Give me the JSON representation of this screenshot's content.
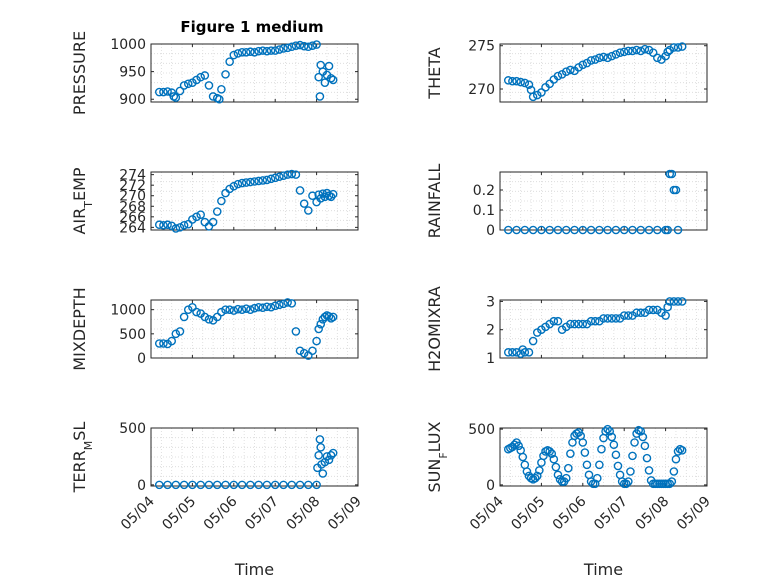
{
  "chart_data": [
    {
      "type": "scatter",
      "title": "Figure 1 medium",
      "ylabel": "PRESSURE",
      "xlabel": "",
      "xlim": [
        0,
        5
      ],
      "ylim": [
        895,
        1000
      ],
      "yticks": [
        900,
        950,
        1000
      ],
      "y_tick_labels": [
        "900",
        "950",
        "1000"
      ],
      "x": [
        0.2,
        0.3,
        0.4,
        0.5,
        0.55,
        0.6,
        0.7,
        0.8,
        0.9,
        1.0,
        1.1,
        1.2,
        1.3,
        1.4,
        1.5,
        1.6,
        1.65,
        1.7,
        1.8,
        1.9,
        2.0,
        2.1,
        2.2,
        2.3,
        2.4,
        2.5,
        2.6,
        2.7,
        2.8,
        2.9,
        3.0,
        3.1,
        3.2,
        3.3,
        3.4,
        3.5,
        3.6,
        3.7,
        3.8,
        3.9,
        4.0,
        4.05,
        4.08,
        4.1,
        4.15,
        4.2,
        4.25,
        4.3,
        4.35,
        4.4
      ],
      "y": [
        913,
        913,
        914,
        912,
        905,
        903,
        915,
        925,
        928,
        930,
        935,
        940,
        943,
        925,
        905,
        902,
        900,
        918,
        945,
        968,
        980,
        983,
        985,
        985,
        986,
        985,
        987,
        988,
        987,
        988,
        988,
        990,
        992,
        993,
        995,
        997,
        998,
        996,
        995,
        997,
        999,
        940,
        905,
        962,
        950,
        930,
        944,
        960,
        938,
        935
      ]
    },
    {
      "type": "scatter",
      "ylabel": "THETA",
      "xlabel": "",
      "xlim": [
        0,
        5
      ],
      "ylim": [
        268.5,
        275.2
      ],
      "yticks": [
        270,
        275
      ],
      "y_tick_labels": [
        "270",
        "275"
      ],
      "x": [
        0.2,
        0.3,
        0.4,
        0.5,
        0.6,
        0.7,
        0.75,
        0.8,
        0.9,
        1.0,
        1.1,
        1.2,
        1.3,
        1.4,
        1.5,
        1.6,
        1.7,
        1.8,
        1.9,
        2.0,
        2.1,
        2.2,
        2.3,
        2.4,
        2.5,
        2.6,
        2.7,
        2.8,
        2.9,
        3.0,
        3.1,
        3.2,
        3.3,
        3.4,
        3.5,
        3.6,
        3.7,
        3.8,
        3.9,
        4.0,
        4.05,
        4.1,
        4.2,
        4.3,
        4.4
      ],
      "y": [
        271,
        270.9,
        270.9,
        270.8,
        270.7,
        270.5,
        269.9,
        269.1,
        269.3,
        269.6,
        270.2,
        270.6,
        271.1,
        271.5,
        271.7,
        272.0,
        272.2,
        272.1,
        272.5,
        272.8,
        273.0,
        273.3,
        273.4,
        273.6,
        273.7,
        273.6,
        273.8,
        274.0,
        274.2,
        274.3,
        274.4,
        274.4,
        274.5,
        274.4,
        274.6,
        274.5,
        274.2,
        273.6,
        273.4,
        273.8,
        274.3,
        274.5,
        274.8,
        274.8,
        274.9
      ]
    },
    {
      "type": "scatter",
      "ylabel": "AIR_TEMP",
      "xlabel": "",
      "xlim": [
        0,
        5
      ],
      "ylim": [
        263.5,
        274.5
      ],
      "yticks": [
        264,
        266,
        268,
        270,
        272,
        274
      ],
      "y_tick_labels": [
        "264",
        "266",
        "268",
        "270",
        "272",
        "274"
      ],
      "x": [
        0.2,
        0.3,
        0.4,
        0.5,
        0.6,
        0.7,
        0.8,
        0.9,
        1.0,
        1.1,
        1.2,
        1.3,
        1.4,
        1.5,
        1.6,
        1.7,
        1.8,
        1.9,
        2.0,
        2.1,
        2.2,
        2.3,
        2.4,
        2.5,
        2.6,
        2.7,
        2.8,
        2.9,
        3.0,
        3.1,
        3.2,
        3.3,
        3.4,
        3.5,
        3.6,
        3.7,
        3.8,
        3.9,
        4.0,
        4.05,
        4.1,
        4.15,
        4.2,
        4.25,
        4.3,
        4.35,
        4.4
      ],
      "y": [
        264.5,
        264.4,
        264.5,
        264.3,
        263.8,
        264.0,
        264.4,
        264.6,
        265.5,
        266.0,
        266.4,
        265.0,
        264.2,
        265.0,
        267.0,
        269.0,
        270.5,
        271.3,
        271.8,
        272.2,
        272.4,
        272.5,
        272.6,
        272.7,
        272.8,
        272.9,
        273.0,
        273.2,
        273.4,
        273.6,
        273.8,
        274.0,
        274.1,
        274.0,
        271.0,
        268.5,
        267.2,
        270.0,
        268.8,
        270.2,
        269.5,
        270.4,
        269.8,
        270.5,
        270.0,
        269.8,
        270.3
      ]
    },
    {
      "type": "scatter",
      "ylabel": "RAINFALL",
      "xlabel": "",
      "xlim": [
        0,
        5
      ],
      "ylim": [
        0,
        0.29
      ],
      "yticks": [
        0,
        0.1,
        0.2
      ],
      "y_tick_labels": [
        "0",
        "0.1",
        "0.2"
      ],
      "x": [
        0.2,
        0.4,
        0.6,
        0.8,
        1.0,
        1.2,
        1.4,
        1.6,
        1.8,
        2.0,
        2.2,
        2.4,
        2.6,
        2.8,
        3.0,
        3.2,
        3.4,
        3.6,
        3.8,
        4.0,
        4.05,
        4.1,
        4.15,
        4.2,
        4.25,
        4.3
      ],
      "y": [
        0,
        0,
        0,
        0,
        0,
        0,
        0,
        0,
        0,
        0,
        0,
        0,
        0,
        0,
        0,
        0,
        0,
        0,
        0,
        0,
        0,
        0.28,
        0.28,
        0.2,
        0.2,
        0
      ]
    },
    {
      "type": "scatter",
      "ylabel": "MIXDEPTH",
      "xlabel": "",
      "xlim": [
        0,
        5
      ],
      "ylim": [
        0,
        1200
      ],
      "yticks": [
        0,
        500,
        1000
      ],
      "y_tick_labels": [
        "0",
        "500",
        "1000"
      ],
      "x": [
        0.2,
        0.3,
        0.4,
        0.5,
        0.6,
        0.7,
        0.8,
        0.9,
        1.0,
        1.1,
        1.2,
        1.3,
        1.4,
        1.5,
        1.6,
        1.7,
        1.8,
        1.9,
        2.0,
        2.1,
        2.2,
        2.3,
        2.4,
        2.5,
        2.6,
        2.7,
        2.8,
        2.9,
        3.0,
        3.1,
        3.2,
        3.3,
        3.4,
        3.5,
        3.6,
        3.7,
        3.8,
        3.9,
        4.0,
        4.05,
        4.1,
        4.15,
        4.2,
        4.25,
        4.3,
        4.35,
        4.4
      ],
      "y": [
        300,
        300,
        290,
        350,
        500,
        550,
        850,
        1000,
        1050,
        950,
        920,
        850,
        800,
        780,
        850,
        950,
        1000,
        1000,
        980,
        1010,
        1000,
        1020,
        1000,
        1030,
        1050,
        1040,
        1060,
        1050,
        1080,
        1100,
        1120,
        1150,
        1130,
        550,
        150,
        100,
        50,
        150,
        350,
        600,
        700,
        800,
        850,
        880,
        860,
        820,
        850
      ]
    },
    {
      "type": "scatter",
      "ylabel": "H2OMIXRA",
      "xlabel": "",
      "xlim": [
        0,
        5
      ],
      "ylim": [
        1,
        3.05
      ],
      "yticks": [
        1,
        2,
        3
      ],
      "y_tick_labels": [
        "1",
        "2",
        "3"
      ],
      "x": [
        0.2,
        0.3,
        0.4,
        0.5,
        0.55,
        0.6,
        0.7,
        0.8,
        0.9,
        1.0,
        1.1,
        1.2,
        1.3,
        1.4,
        1.5,
        1.6,
        1.7,
        1.8,
        1.9,
        2.0,
        2.1,
        2.2,
        2.3,
        2.4,
        2.5,
        2.6,
        2.7,
        2.8,
        2.9,
        3.0,
        3.1,
        3.2,
        3.3,
        3.4,
        3.5,
        3.6,
        3.7,
        3.8,
        3.9,
        4.0,
        4.05,
        4.1,
        4.2,
        4.3,
        4.4
      ],
      "y": [
        1.2,
        1.2,
        1.2,
        1.15,
        1.3,
        1.2,
        1.2,
        1.6,
        1.9,
        2.0,
        2.1,
        2.2,
        2.3,
        2.3,
        2.0,
        2.1,
        2.2,
        2.2,
        2.2,
        2.2,
        2.2,
        2.3,
        2.3,
        2.3,
        2.4,
        2.4,
        2.4,
        2.4,
        2.4,
        2.5,
        2.5,
        2.5,
        2.6,
        2.6,
        2.6,
        2.7,
        2.7,
        2.7,
        2.6,
        2.5,
        2.8,
        3.0,
        3.0,
        3.0,
        3.0
      ]
    },
    {
      "type": "scatter",
      "ylabel": "TERR_MSL",
      "xlabel": "Time",
      "xlim": [
        0,
        5
      ],
      "ylim": [
        -10,
        500
      ],
      "yticks": [
        0,
        500
      ],
      "y_tick_labels": [
        "0",
        "500"
      ],
      "x_tick_labels": [
        "05/04",
        "05/05",
        "05/06",
        "05/07",
        "05/08",
        "05/09"
      ],
      "x": [
        0.2,
        0.4,
        0.6,
        0.8,
        1.0,
        1.2,
        1.4,
        1.6,
        1.8,
        2.0,
        2.2,
        2.4,
        2.6,
        2.8,
        3.0,
        3.2,
        3.4,
        3.6,
        3.8,
        4.0,
        4.02,
        4.05,
        4.08,
        4.1,
        4.12,
        4.15,
        4.2,
        4.25,
        4.3,
        4.35,
        4.4
      ],
      "y": [
        0,
        0,
        0,
        0,
        0,
        0,
        0,
        0,
        0,
        0,
        0,
        0,
        0,
        0,
        0,
        0,
        0,
        0,
        0,
        0,
        150,
        260,
        400,
        330,
        180,
        100,
        200,
        250,
        220,
        260,
        280
      ]
    },
    {
      "type": "scatter",
      "ylabel": "SUN_FLUX",
      "xlabel": "Time",
      "xlim": [
        0,
        5
      ],
      "ylim": [
        -10,
        510
      ],
      "yticks": [
        0,
        500
      ],
      "y_tick_labels": [
        "0",
        "500"
      ],
      "x_tick_labels": [
        "05/04",
        "05/05",
        "05/06",
        "05/07",
        "05/08",
        "05/09"
      ],
      "x": [
        0.2,
        0.25,
        0.3,
        0.35,
        0.4,
        0.45,
        0.5,
        0.55,
        0.6,
        0.65,
        0.7,
        0.75,
        0.8,
        0.85,
        0.9,
        0.95,
        1.0,
        1.05,
        1.1,
        1.15,
        1.2,
        1.25,
        1.3,
        1.35,
        1.4,
        1.45,
        1.5,
        1.55,
        1.6,
        1.65,
        1.7,
        1.75,
        1.8,
        1.85,
        1.9,
        1.95,
        2.0,
        2.05,
        2.1,
        2.15,
        2.2,
        2.25,
        2.3,
        2.35,
        2.4,
        2.45,
        2.5,
        2.55,
        2.6,
        2.65,
        2.7,
        2.75,
        2.8,
        2.85,
        2.9,
        2.95,
        3.0,
        3.05,
        3.1,
        3.15,
        3.2,
        3.25,
        3.3,
        3.35,
        3.4,
        3.45,
        3.5,
        3.55,
        3.6,
        3.65,
        3.7,
        3.75,
        3.8,
        3.85,
        3.9,
        3.95,
        4.0,
        4.05,
        4.1,
        4.15,
        4.2,
        4.25,
        4.3,
        4.35,
        4.4
      ],
      "y": [
        320,
        330,
        340,
        360,
        380,
        350,
        310,
        250,
        180,
        120,
        80,
        60,
        50,
        60,
        80,
        130,
        200,
        260,
        300,
        310,
        300,
        280,
        230,
        160,
        90,
        50,
        30,
        30,
        60,
        150,
        280,
        380,
        440,
        460,
        470,
        440,
        380,
        290,
        180,
        90,
        30,
        10,
        10,
        60,
        180,
        320,
        420,
        480,
        500,
        480,
        430,
        360,
        270,
        170,
        90,
        30,
        10,
        10,
        30,
        120,
        260,
        380,
        460,
        490,
        480,
        430,
        350,
        240,
        130,
        40,
        10,
        10,
        10,
        10,
        10,
        10,
        10,
        10,
        10,
        30,
        120,
        230,
        300,
        320,
        310
      ]
    }
  ]
}
